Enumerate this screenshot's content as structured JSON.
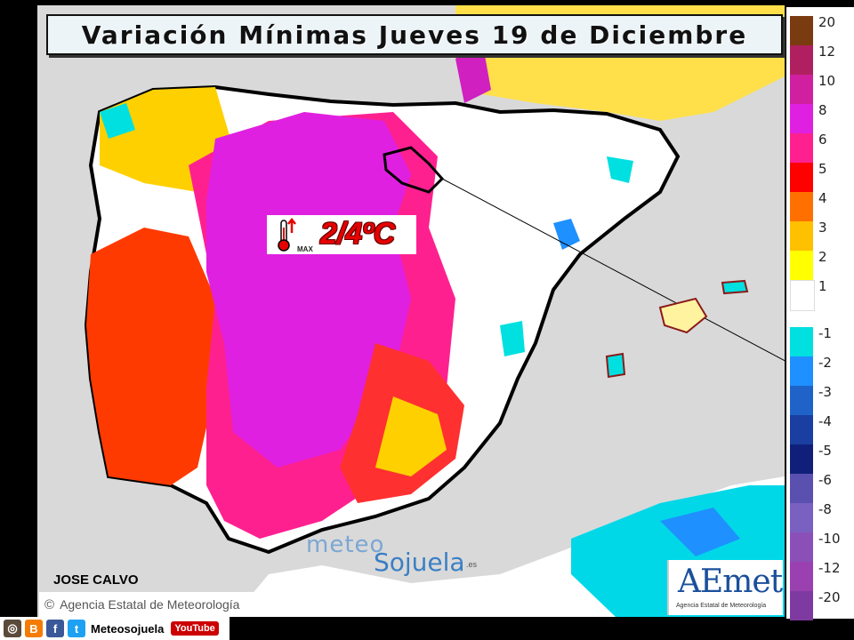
{
  "title": "Variación Mínimas Jueves 19 de Diciembre",
  "annotation": {
    "value": "2/4ºC",
    "thermometer_label": "MAX"
  },
  "author": "JOSE CALVO",
  "agency": "Agencia Estatal de Meteorología",
  "aemet": {
    "logo": "AEmet",
    "subtitle": "Agencia Estatal de Meteorología"
  },
  "watermark": {
    "part1": "meteo",
    "part2": "Sojuela",
    "part3": ".es"
  },
  "social": {
    "name": "Meteosojuela",
    "youtube": "YouTube"
  },
  "legend": [
    {
      "label": "20",
      "color": "#7a3b10"
    },
    {
      "label": "12",
      "color": "#b02060"
    },
    {
      "label": "10",
      "color": "#d020a0"
    },
    {
      "label": "8",
      "color": "#e020e0"
    },
    {
      "label": "6",
      "color": "#ff2090"
    },
    {
      "label": "5",
      "color": "#ff0000"
    },
    {
      "label": "4",
      "color": "#ff7000"
    },
    {
      "label": "3",
      "color": "#ffc000"
    },
    {
      "label": "2",
      "color": "#ffff00"
    },
    {
      "label": "1",
      "color": "#ffffff"
    },
    {
      "label": "-1",
      "color": "#00e0e0"
    },
    {
      "label": "-2",
      "color": "#1e90ff"
    },
    {
      "label": "-3",
      "color": "#1f63c8"
    },
    {
      "label": "-4",
      "color": "#1a3fa0"
    },
    {
      "label": "-5",
      "color": "#10207a"
    },
    {
      "label": "-6",
      "color": "#5a50b0"
    },
    {
      "label": "-8",
      "color": "#7a60c0"
    },
    {
      "label": "-10",
      "color": "#8a50b8"
    },
    {
      "label": "-12",
      "color": "#9a40b0"
    },
    {
      "label": "-20",
      "color": "#7e3aa0"
    }
  ],
  "colors": {
    "sea": "#d9d9d9",
    "warm_core": "#e020e0",
    "warm_mid": "#ff2090",
    "warm_edge": "#ff0000",
    "east_white": "#ffffff",
    "africa_blue": "#00e0e0"
  },
  "icons": [
    "thermometer-up-icon",
    "instagram-icon",
    "blogger-icon",
    "facebook-icon",
    "twitter-icon"
  ]
}
